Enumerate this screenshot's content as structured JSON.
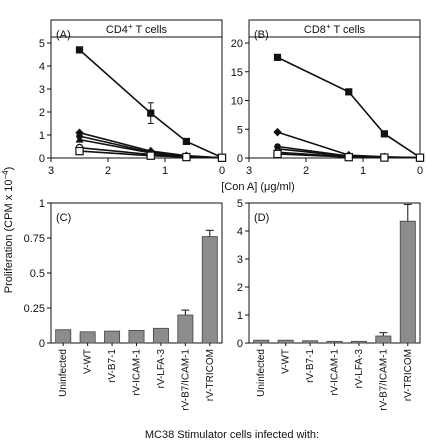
{
  "figure": {
    "ylabel": "Proliferation (CPM x 10",
    "ylabel_exp": "−4",
    "ylabel_close": ")",
    "footer": "MC38 Stimulator cells infected with:",
    "con_a_label": "[Con A] (μg/ml)"
  },
  "chart_data": [
    {
      "id": "A",
      "type": "line",
      "panel_label": "(A)",
      "header": "CD4",
      "header_sup": "+",
      "header_rest": " T cells",
      "xlim": [
        3,
        0
      ],
      "ylim": [
        0,
        5
      ],
      "xticks": [
        3,
        2,
        1,
        0
      ],
      "yticks": [
        0,
        1,
        2,
        3,
        4,
        5
      ],
      "x": [
        2.5,
        1.25,
        0.625,
        0
      ],
      "series": [
        {
          "marker": "square",
          "values": [
            4.7,
            1.95,
            0.72,
            0.02
          ],
          "err": [
            0,
            0.45,
            0,
            0
          ]
        },
        {
          "marker": "diamond",
          "values": [
            1.1,
            0.3,
            0.1,
            0.01
          ],
          "err": [
            0,
            0,
            0,
            0
          ]
        },
        {
          "marker": "circle",
          "values": [
            0.95,
            0.25,
            0.08,
            0.01
          ],
          "err": [
            0,
            0,
            0,
            0
          ]
        },
        {
          "marker": "triangle",
          "values": [
            0.8,
            0.22,
            0.07,
            0.01
          ],
          "err": [
            0,
            0,
            0,
            0
          ]
        },
        {
          "marker": "open-circle",
          "values": [
            0.45,
            0.15,
            0.05,
            0.01
          ],
          "err": [
            0,
            0,
            0,
            0
          ]
        },
        {
          "marker": "open-square",
          "values": [
            0.3,
            0.1,
            0.04,
            0.01
          ],
          "err": [
            0,
            0,
            0,
            0
          ]
        }
      ]
    },
    {
      "id": "B",
      "type": "line",
      "panel_label": "(B)",
      "header": "CD8",
      "header_sup": "+",
      "header_rest": " T cells",
      "xlim": [
        3,
        0
      ],
      "ylim": [
        0,
        20
      ],
      "xticks": [
        3,
        2,
        1,
        0
      ],
      "yticks": [
        0,
        5,
        10,
        15,
        20
      ],
      "x": [
        2.5,
        1.25,
        0.625,
        0
      ],
      "series": [
        {
          "marker": "square",
          "values": [
            17.5,
            11.5,
            4.2,
            0.1
          ],
          "err": [
            0,
            0,
            0,
            0
          ]
        },
        {
          "marker": "diamond",
          "values": [
            4.5,
            0.5,
            0.2,
            0.05
          ],
          "err": [
            0,
            0,
            0,
            0
          ]
        },
        {
          "marker": "circle",
          "values": [
            2.0,
            0.35,
            0.15,
            0.05
          ],
          "err": [
            0,
            0,
            0,
            0
          ]
        },
        {
          "marker": "triangle",
          "values": [
            1.6,
            0.3,
            0.12,
            0.05
          ],
          "err": [
            0,
            0,
            0,
            0
          ]
        },
        {
          "marker": "open-circle",
          "values": [
            1.0,
            0.2,
            0.1,
            0.05
          ],
          "err": [
            0,
            0,
            0,
            0
          ]
        },
        {
          "marker": "open-square",
          "values": [
            0.7,
            0.15,
            0.08,
            0.05
          ],
          "err": [
            0,
            0,
            0,
            0
          ]
        }
      ]
    },
    {
      "id": "C",
      "type": "bar",
      "panel_label": "(C)",
      "ylim": [
        0,
        1
      ],
      "yticks": [
        0,
        0.25,
        0.5,
        0.75,
        1
      ],
      "ytick_labels": [
        "0",
        "0.25",
        "0.5",
        "0.75",
        "1"
      ],
      "categories": [
        "Uninfected",
        "V-WT",
        "rV-B7-1",
        "rV-ICAM-1",
        "rV-LFA-3",
        "rV-B7/ICAM-1",
        "rV-TRICOM"
      ],
      "values": [
        0.095,
        0.08,
        0.085,
        0.09,
        0.105,
        0.2,
        0.76
      ],
      "err": [
        0,
        0,
        0,
        0,
        0,
        0.035,
        0.045
      ]
    },
    {
      "id": "D",
      "type": "bar",
      "panel_label": "(D)",
      "ylim": [
        0,
        5
      ],
      "yticks": [
        0,
        1,
        2,
        3,
        4,
        5
      ],
      "ytick_labels": [
        "0",
        "1",
        "2",
        "3",
        "4",
        "5"
      ],
      "categories": [
        "Uninfected",
        "V-WT",
        "rV-B7-1",
        "rV-ICAM-1",
        "rV-LFA-3",
        "rV-B7/ICAM-1",
        "rV-TRICOM"
      ],
      "values": [
        0.1,
        0.1,
        0.08,
        0.06,
        0.06,
        0.25,
        4.35
      ],
      "err": [
        0,
        0,
        0,
        0,
        0,
        0.12,
        0.6
      ]
    }
  ]
}
